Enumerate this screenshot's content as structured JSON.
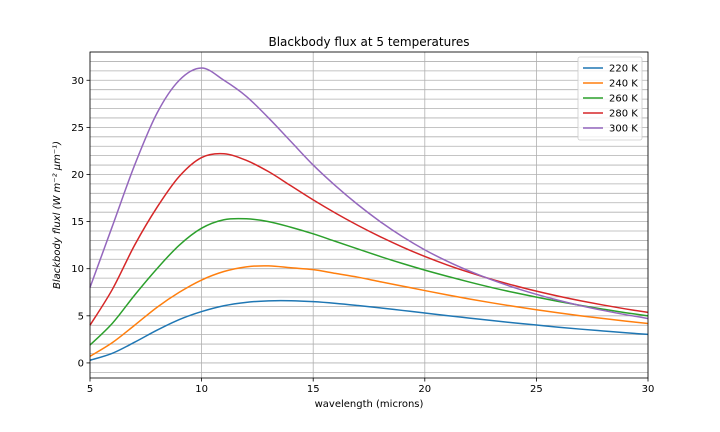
{
  "chart_data": {
    "type": "line",
    "title": "Blackbody flux at 5 temperatures",
    "xlabel": "wavelength (microns)",
    "ylabel": "Blackbody fluxl (W m⁻² μm⁻¹)",
    "xlim": [
      5,
      30
    ],
    "ylim": [
      -1.6,
      33
    ],
    "x_ticks": [
      5,
      10,
      15,
      20,
      25,
      30
    ],
    "y_ticks": [
      0,
      5,
      10,
      15,
      20,
      25,
      30
    ],
    "grid": true,
    "grid_note": "vertical major grid every 5 microns; horizontal minor grid every 1 unit",
    "legend_position": "top-right",
    "series": [
      {
        "name": "220 K",
        "color": "#1f77b4",
        "x": [
          5,
          6,
          7,
          8,
          9,
          10,
          11,
          12,
          13,
          14,
          15,
          16,
          17,
          18,
          19,
          20,
          21,
          22,
          23,
          24,
          25,
          26,
          27,
          28,
          29,
          30
        ],
        "y": [
          0.28,
          1.02,
          2.2,
          3.47,
          4.6,
          5.45,
          6.07,
          6.43,
          6.59,
          6.6,
          6.5,
          6.32,
          6.09,
          5.84,
          5.57,
          5.3,
          5.02,
          4.76,
          4.5,
          4.25,
          4.02,
          3.79,
          3.58,
          3.39,
          3.2,
          3.03
        ]
      },
      {
        "name": "240 K",
        "color": "#ff7f0e",
        "x": [
          5,
          6,
          7,
          8,
          9,
          10,
          11,
          12,
          13,
          14,
          15,
          16,
          17,
          18,
          19,
          20,
          21,
          22,
          23,
          24,
          25,
          26,
          27,
          28,
          29,
          30
        ],
        "y": [
          0.7,
          2.15,
          4.0,
          5.9,
          7.5,
          8.8,
          9.7,
          10.2,
          10.3,
          10.1,
          9.9,
          9.5,
          9.1,
          8.62,
          8.15,
          7.68,
          7.22,
          6.79,
          6.38,
          6.0,
          5.64,
          5.31,
          5.0,
          4.71,
          4.44,
          4.19
        ]
      },
      {
        "name": "260 K",
        "color": "#2ca02c",
        "x": [
          5,
          6,
          7,
          8,
          9,
          10,
          11,
          12,
          13,
          14,
          15,
          16,
          17,
          18,
          19,
          20,
          21,
          22,
          23,
          24,
          25,
          26,
          27,
          28,
          29,
          30
        ],
        "y": [
          1.9,
          4.2,
          7.2,
          10.0,
          12.5,
          14.3,
          15.2,
          15.3,
          15.0,
          14.4,
          13.7,
          12.9,
          12.1,
          11.3,
          10.55,
          9.85,
          9.2,
          8.58,
          8.0,
          7.47,
          6.98,
          6.52,
          6.09,
          5.7,
          5.33,
          5.0
        ]
      },
      {
        "name": "280 K",
        "color": "#d62728",
        "x": [
          5,
          6,
          7,
          8,
          9,
          10,
          11,
          12,
          13,
          14,
          15,
          16,
          17,
          18,
          19,
          20,
          21,
          22,
          23,
          24,
          25,
          26,
          27,
          28,
          29,
          30
        ],
        "y": [
          4.0,
          7.8,
          12.5,
          16.5,
          19.8,
          21.8,
          22.2,
          21.5,
          20.3,
          18.8,
          17.3,
          15.9,
          14.6,
          13.4,
          12.3,
          11.3,
          10.4,
          9.6,
          8.87,
          8.22,
          7.62,
          7.08,
          6.59,
          6.14,
          5.73,
          5.36
        ]
      },
      {
        "name": "300 K",
        "color": "#9467bd",
        "x": [
          5,
          6,
          7,
          8,
          9,
          10,
          11,
          12,
          13,
          14,
          15,
          16,
          17,
          18,
          19,
          20,
          21,
          22,
          23,
          24,
          25,
          26,
          27,
          28,
          29,
          30
        ],
        "y": [
          8.0,
          14.5,
          21.0,
          26.5,
          30.0,
          31.3,
          30.0,
          28.3,
          26.0,
          23.5,
          21.0,
          18.8,
          16.8,
          15.0,
          13.4,
          12.0,
          10.8,
          9.75,
          8.82,
          8.0,
          7.28,
          6.64,
          6.07,
          5.57,
          5.12,
          4.72
        ]
      }
    ]
  }
}
